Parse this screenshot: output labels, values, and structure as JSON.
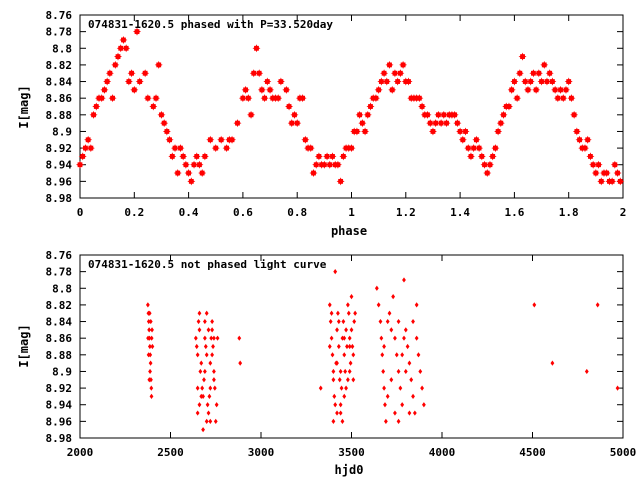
{
  "chart_data": [
    {
      "type": "scatter",
      "title": "074831-1620.5 phased with P=33.520day",
      "xlabel": "phase",
      "ylabel": "I[mag]",
      "xlim": [
        0,
        2
      ],
      "ylim": [
        8.98,
        8.76
      ],
      "y_inverted": true,
      "grid": false,
      "marker": "star",
      "color": "#ff0000",
      "xticks": [
        "0",
        "0.2",
        "0.4",
        "0.6",
        "0.8",
        "1",
        "1.2",
        "1.4",
        "1.6",
        "1.8",
        "2"
      ],
      "yticks": [
        "8.76",
        "8.78",
        "8.8",
        "8.82",
        "8.84",
        "8.86",
        "8.88",
        "8.9",
        "8.92",
        "8.94",
        "8.96",
        "8.98"
      ],
      "points": [
        [
          0.0,
          8.94
        ],
        [
          0.01,
          8.93
        ],
        [
          0.02,
          8.92
        ],
        [
          0.03,
          8.91
        ],
        [
          0.04,
          8.92
        ],
        [
          0.05,
          8.88
        ],
        [
          0.06,
          8.87
        ],
        [
          0.07,
          8.86
        ],
        [
          0.08,
          8.86
        ],
        [
          0.09,
          8.85
        ],
        [
          0.1,
          8.84
        ],
        [
          0.11,
          8.83
        ],
        [
          0.12,
          8.86
        ],
        [
          0.13,
          8.82
        ],
        [
          0.14,
          8.81
        ],
        [
          0.15,
          8.8
        ],
        [
          0.16,
          8.79
        ],
        [
          0.17,
          8.8
        ],
        [
          0.18,
          8.84
        ],
        [
          0.19,
          8.83
        ],
        [
          0.2,
          8.85
        ],
        [
          0.21,
          8.78
        ],
        [
          0.22,
          8.84
        ],
        [
          0.24,
          8.83
        ],
        [
          0.25,
          8.86
        ],
        [
          0.27,
          8.87
        ],
        [
          0.28,
          8.86
        ],
        [
          0.29,
          8.82
        ],
        [
          0.3,
          8.88
        ],
        [
          0.31,
          8.89
        ],
        [
          0.32,
          8.9
        ],
        [
          0.33,
          8.91
        ],
        [
          0.34,
          8.93
        ],
        [
          0.35,
          8.92
        ],
        [
          0.36,
          8.95
        ],
        [
          0.37,
          8.92
        ],
        [
          0.38,
          8.93
        ],
        [
          0.39,
          8.94
        ],
        [
          0.4,
          8.95
        ],
        [
          0.41,
          8.96
        ],
        [
          0.42,
          8.94
        ],
        [
          0.43,
          8.93
        ],
        [
          0.44,
          8.94
        ],
        [
          0.45,
          8.95
        ],
        [
          0.46,
          8.93
        ],
        [
          0.48,
          8.91
        ],
        [
          0.5,
          8.92
        ],
        [
          0.52,
          8.91
        ],
        [
          0.54,
          8.92
        ],
        [
          0.55,
          8.91
        ],
        [
          0.56,
          8.91
        ],
        [
          0.58,
          8.89
        ],
        [
          0.6,
          8.86
        ],
        [
          0.61,
          8.85
        ],
        [
          0.62,
          8.86
        ],
        [
          0.63,
          8.88
        ],
        [
          0.64,
          8.83
        ],
        [
          0.65,
          8.8
        ],
        [
          0.66,
          8.83
        ],
        [
          0.67,
          8.85
        ],
        [
          0.68,
          8.86
        ],
        [
          0.69,
          8.84
        ],
        [
          0.7,
          8.85
        ],
        [
          0.71,
          8.86
        ],
        [
          0.72,
          8.86
        ],
        [
          0.73,
          8.86
        ],
        [
          0.74,
          8.84
        ],
        [
          0.76,
          8.85
        ],
        [
          0.77,
          8.87
        ],
        [
          0.78,
          8.89
        ],
        [
          0.79,
          8.88
        ],
        [
          0.8,
          8.89
        ],
        [
          0.81,
          8.86
        ],
        [
          0.82,
          8.86
        ],
        [
          0.83,
          8.91
        ],
        [
          0.84,
          8.92
        ],
        [
          0.85,
          8.92
        ],
        [
          0.86,
          8.95
        ],
        [
          0.87,
          8.94
        ],
        [
          0.88,
          8.93
        ],
        [
          0.89,
          8.94
        ],
        [
          0.9,
          8.94
        ],
        [
          0.91,
          8.93
        ],
        [
          0.92,
          8.94
        ],
        [
          0.93,
          8.93
        ],
        [
          0.94,
          8.94
        ],
        [
          0.95,
          8.94
        ],
        [
          0.96,
          8.96
        ],
        [
          0.97,
          8.93
        ],
        [
          0.98,
          8.92
        ],
        [
          0.99,
          8.92
        ],
        [
          1.0,
          8.92
        ],
        [
          1.01,
          8.9
        ],
        [
          1.02,
          8.9
        ],
        [
          1.03,
          8.88
        ],
        [
          1.04,
          8.89
        ],
        [
          1.05,
          8.9
        ],
        [
          1.06,
          8.88
        ],
        [
          1.07,
          8.87
        ],
        [
          1.08,
          8.86
        ],
        [
          1.09,
          8.86
        ],
        [
          1.1,
          8.85
        ],
        [
          1.11,
          8.84
        ],
        [
          1.12,
          8.83
        ],
        [
          1.13,
          8.84
        ],
        [
          1.14,
          8.82
        ],
        [
          1.15,
          8.85
        ],
        [
          1.16,
          8.83
        ],
        [
          1.17,
          8.84
        ],
        [
          1.18,
          8.83
        ],
        [
          1.19,
          8.82
        ],
        [
          1.2,
          8.84
        ],
        [
          1.21,
          8.84
        ],
        [
          1.22,
          8.86
        ],
        [
          1.23,
          8.86
        ],
        [
          1.24,
          8.86
        ],
        [
          1.25,
          8.86
        ],
        [
          1.26,
          8.87
        ],
        [
          1.27,
          8.88
        ],
        [
          1.28,
          8.88
        ],
        [
          1.29,
          8.89
        ],
        [
          1.3,
          8.9
        ],
        [
          1.31,
          8.89
        ],
        [
          1.32,
          8.88
        ],
        [
          1.33,
          8.89
        ],
        [
          1.34,
          8.88
        ],
        [
          1.35,
          8.89
        ],
        [
          1.36,
          8.88
        ],
        [
          1.37,
          8.88
        ],
        [
          1.38,
          8.88
        ],
        [
          1.39,
          8.89
        ],
        [
          1.4,
          8.9
        ],
        [
          1.41,
          8.91
        ],
        [
          1.42,
          8.9
        ],
        [
          1.43,
          8.92
        ],
        [
          1.44,
          8.93
        ],
        [
          1.45,
          8.92
        ],
        [
          1.46,
          8.91
        ],
        [
          1.47,
          8.92
        ],
        [
          1.48,
          8.93
        ],
        [
          1.49,
          8.94
        ],
        [
          1.5,
          8.95
        ],
        [
          1.51,
          8.94
        ],
        [
          1.52,
          8.93
        ],
        [
          1.53,
          8.92
        ],
        [
          1.54,
          8.9
        ],
        [
          1.55,
          8.89
        ],
        [
          1.56,
          8.88
        ],
        [
          1.57,
          8.87
        ],
        [
          1.58,
          8.87
        ],
        [
          1.59,
          8.85
        ],
        [
          1.6,
          8.84
        ],
        [
          1.61,
          8.86
        ],
        [
          1.62,
          8.83
        ],
        [
          1.63,
          8.81
        ],
        [
          1.64,
          8.84
        ],
        [
          1.65,
          8.85
        ],
        [
          1.66,
          8.84
        ],
        [
          1.67,
          8.83
        ],
        [
          1.68,
          8.85
        ],
        [
          1.69,
          8.83
        ],
        [
          1.7,
          8.84
        ],
        [
          1.71,
          8.82
        ],
        [
          1.72,
          8.84
        ],
        [
          1.73,
          8.83
        ],
        [
          1.74,
          8.84
        ],
        [
          1.75,
          8.85
        ],
        [
          1.76,
          8.86
        ],
        [
          1.77,
          8.85
        ],
        [
          1.78,
          8.86
        ],
        [
          1.79,
          8.85
        ],
        [
          1.8,
          8.84
        ],
        [
          1.81,
          8.86
        ],
        [
          1.82,
          8.88
        ],
        [
          1.83,
          8.9
        ],
        [
          1.84,
          8.91
        ],
        [
          1.85,
          8.92
        ],
        [
          1.86,
          8.92
        ],
        [
          1.87,
          8.91
        ],
        [
          1.88,
          8.93
        ],
        [
          1.89,
          8.94
        ],
        [
          1.9,
          8.95
        ],
        [
          1.91,
          8.94
        ],
        [
          1.92,
          8.96
        ],
        [
          1.93,
          8.95
        ],
        [
          1.94,
          8.95
        ],
        [
          1.95,
          8.96
        ],
        [
          1.96,
          8.96
        ],
        [
          1.97,
          8.94
        ],
        [
          1.98,
          8.95
        ],
        [
          1.99,
          8.96
        ]
      ]
    },
    {
      "type": "scatter",
      "title": "074831-1620.5 not phased light curve",
      "xlabel": "hjd0",
      "ylabel": "I[mag]",
      "xlim": [
        2000,
        5000
      ],
      "ylim": [
        8.98,
        8.76
      ],
      "y_inverted": true,
      "grid": false,
      "marker": "diamond",
      "color": "#ff0000",
      "xticks": [
        "2000",
        "2500",
        "3000",
        "3500",
        "4000",
        "4500",
        "5000"
      ],
      "yticks": [
        "8.76",
        "8.78",
        "8.8",
        "8.82",
        "8.84",
        "8.86",
        "8.88",
        "8.9",
        "8.92",
        "8.94",
        "8.96",
        "8.98"
      ],
      "points": [
        [
          2375,
          8.82
        ],
        [
          2378,
          8.83
        ],
        [
          2380,
          8.84
        ],
        [
          2382,
          8.85
        ],
        [
          2384,
          8.86
        ],
        [
          2386,
          8.87
        ],
        [
          2388,
          8.88
        ],
        [
          2390,
          8.89
        ],
        [
          2392,
          8.91
        ],
        [
          2394,
          8.92
        ],
        [
          2376,
          8.86
        ],
        [
          2385,
          8.83
        ],
        [
          2395,
          8.93
        ],
        [
          2398,
          8.85
        ],
        [
          2400,
          8.87
        ],
        [
          2387,
          8.9
        ],
        [
          2391,
          8.84
        ],
        [
          2379,
          8.88
        ],
        [
          2396,
          8.86
        ],
        [
          2383,
          8.91
        ],
        [
          2640,
          8.86
        ],
        [
          2645,
          8.87
        ],
        [
          2650,
          8.88
        ],
        [
          2655,
          8.84
        ],
        [
          2660,
          8.85
        ],
        [
          2665,
          8.9
        ],
        [
          2670,
          8.89
        ],
        [
          2675,
          8.92
        ],
        [
          2680,
          8.93
        ],
        [
          2685,
          8.91
        ],
        [
          2690,
          8.86
        ],
        [
          2695,
          8.87
        ],
        [
          2700,
          8.88
        ],
        [
          2705,
          8.94
        ],
        [
          2710,
          8.95
        ],
        [
          2715,
          8.93
        ],
        [
          2720,
          8.89
        ],
        [
          2725,
          8.86
        ],
        [
          2730,
          8.85
        ],
        [
          2735,
          8.87
        ],
        [
          2740,
          8.9
        ],
        [
          2745,
          8.92
        ],
        [
          2750,
          8.96
        ],
        [
          2755,
          8.94
        ],
        [
          2760,
          8.86
        ],
        [
          2680,
          8.97
        ],
        [
          2700,
          8.96
        ],
        [
          2720,
          8.96
        ],
        [
          2650,
          8.95
        ],
        [
          2660,
          8.94
        ],
        [
          2670,
          8.93
        ],
        [
          2690,
          8.84
        ],
        [
          2710,
          8.85
        ],
        [
          2730,
          8.88
        ],
        [
          2740,
          8.91
        ],
        [
          2660,
          8.83
        ],
        [
          2700,
          8.83
        ],
        [
          2730,
          8.84
        ],
        [
          2720,
          8.92
        ],
        [
          2690,
          8.9
        ],
        [
          2650,
          8.92
        ],
        [
          2740,
          8.86
        ],
        [
          2880,
          8.86
        ],
        [
          2885,
          8.89
        ],
        [
          3330,
          8.92
        ],
        [
          3380,
          8.82
        ],
        [
          3385,
          8.84
        ],
        [
          3390,
          8.86
        ],
        [
          3395,
          8.88
        ],
        [
          3400,
          8.9
        ],
        [
          3405,
          8.93
        ],
        [
          3410,
          8.94
        ],
        [
          3415,
          8.89
        ],
        [
          3420,
          8.85
        ],
        [
          3425,
          8.83
        ],
        [
          3430,
          8.87
        ],
        [
          3435,
          8.91
        ],
        [
          3440,
          8.95
        ],
        [
          3445,
          8.92
        ],
        [
          3450,
          8.86
        ],
        [
          3455,
          8.84
        ],
        [
          3460,
          8.88
        ],
        [
          3465,
          8.9
        ],
        [
          3470,
          8.85
        ],
        [
          3475,
          8.87
        ],
        [
          3480,
          8.82
        ],
        [
          3485,
          8.83
        ],
        [
          3490,
          8.86
        ],
        [
          3495,
          8.89
        ],
        [
          3500,
          8.85
        ],
        [
          3505,
          8.87
        ],
        [
          3510,
          8.91
        ],
        [
          3515,
          8.84
        ],
        [
          3520,
          8.83
        ],
        [
          3410,
          8.78
        ],
        [
          3400,
          8.96
        ],
        [
          3420,
          8.95
        ],
        [
          3440,
          8.94
        ],
        [
          3460,
          8.93
        ],
        [
          3470,
          8.92
        ],
        [
          3480,
          8.91
        ],
        [
          3490,
          8.9
        ],
        [
          3450,
          8.96
        ],
        [
          3500,
          8.81
        ],
        [
          3390,
          8.83
        ],
        [
          3430,
          8.84
        ],
        [
          3460,
          8.86
        ],
        [
          3490,
          8.87
        ],
        [
          3510,
          8.88
        ],
        [
          3420,
          8.89
        ],
        [
          3440,
          8.9
        ],
        [
          3400,
          8.91
        ],
        [
          3380,
          8.87
        ],
        [
          3640,
          8.8
        ],
        [
          3650,
          8.82
        ],
        [
          3660,
          8.84
        ],
        [
          3665,
          8.86
        ],
        [
          3670,
          8.88
        ],
        [
          3675,
          8.9
        ],
        [
          3680,
          8.92
        ],
        [
          3685,
          8.94
        ],
        [
          3690,
          8.96
        ],
        [
          3700,
          8.84
        ],
        [
          3710,
          8.83
        ],
        [
          3720,
          8.85
        ],
        [
          3730,
          8.81
        ],
        [
          3740,
          8.86
        ],
        [
          3750,
          8.88
        ],
        [
          3760,
          8.9
        ],
        [
          3770,
          8.92
        ],
        [
          3780,
          8.94
        ],
        [
          3790,
          8.79
        ],
        [
          3800,
          8.85
        ],
        [
          3810,
          8.87
        ],
        [
          3820,
          8.89
        ],
        [
          3830,
          8.91
        ],
        [
          3840,
          8.93
        ],
        [
          3850,
          8.95
        ],
        [
          3860,
          8.86
        ],
        [
          3870,
          8.88
        ],
        [
          3880,
          8.9
        ],
        [
          3890,
          8.92
        ],
        [
          3900,
          8.94
        ],
        [
          3700,
          8.93
        ],
        [
          3720,
          8.91
        ],
        [
          3740,
          8.95
        ],
        [
          3760,
          8.96
        ],
        [
          3780,
          8.88
        ],
        [
          3800,
          8.9
        ],
        [
          3820,
          8.95
        ],
        [
          3840,
          8.84
        ],
        [
          3860,
          8.82
        ],
        [
          3680,
          8.87
        ],
        [
          3760,
          8.84
        ],
        [
          3790,
          8.86
        ],
        [
          4510,
          8.82
        ],
        [
          4610,
          8.89
        ],
        [
          4800,
          8.9
        ],
        [
          4860,
          8.82
        ],
        [
          4970,
          8.92
        ]
      ]
    }
  ]
}
